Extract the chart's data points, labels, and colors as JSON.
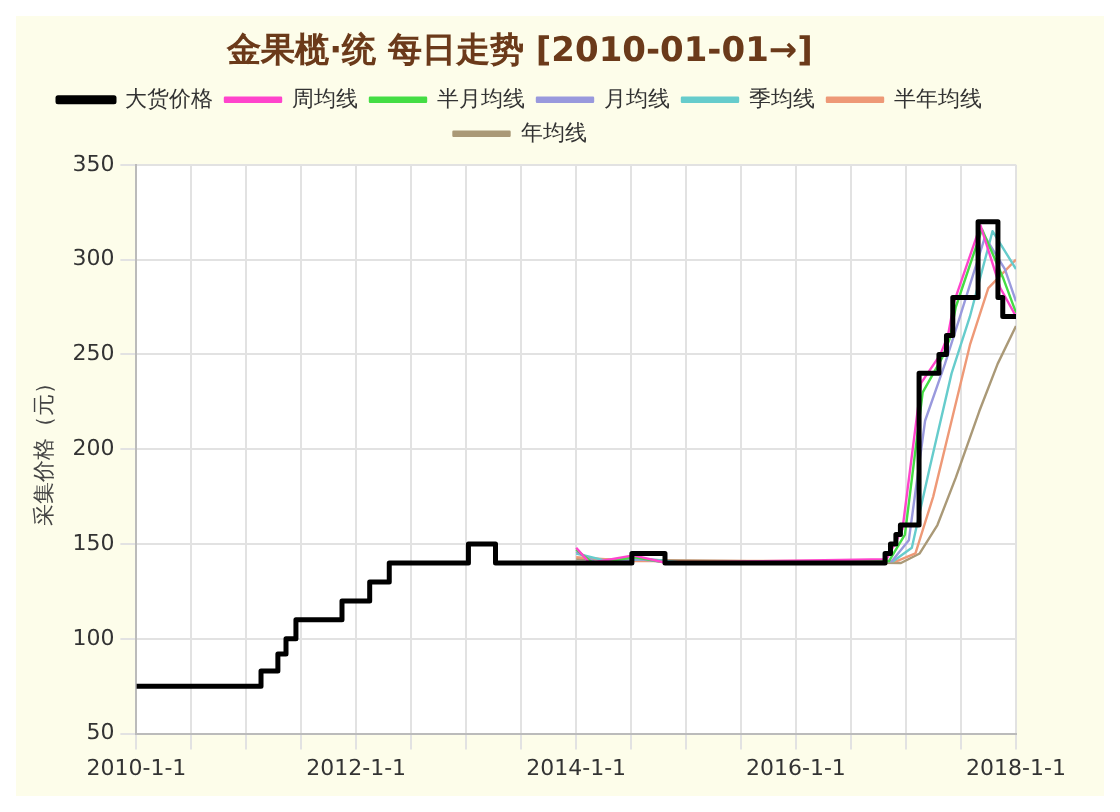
{
  "chart_data": {
    "type": "line",
    "title": "金果榄·统 每日走势 [2010-01-01→]",
    "ylabel": "采集价格（元）",
    "xlim": [
      "2010-01-01",
      "2018-01-01"
    ],
    "xticks": [
      {
        "value": "2010-01-01",
        "label": "2010-1-1"
      },
      {
        "value": "2010-07-01",
        "label": null
      },
      {
        "value": "2011-01-01",
        "label": null
      },
      {
        "value": "2011-07-01",
        "label": null
      },
      {
        "value": "2012-01-01",
        "label": "2012-1-1"
      },
      {
        "value": "2012-07-01",
        "label": null
      },
      {
        "value": "2013-01-01",
        "label": null
      },
      {
        "value": "2013-07-01",
        "label": null
      },
      {
        "value": "2014-01-01",
        "label": "2014-1-1"
      },
      {
        "value": "2014-07-01",
        "label": null
      },
      {
        "value": "2015-01-01",
        "label": null
      },
      {
        "value": "2015-07-01",
        "label": null
      },
      {
        "value": "2016-01-01",
        "label": "2016-1-1"
      },
      {
        "value": "2016-07-01",
        "label": null
      },
      {
        "value": "2017-01-01",
        "label": null
      },
      {
        "value": "2017-07-01",
        "label": null
      },
      {
        "value": "2018-01-01",
        "label": "2018-1-1"
      }
    ],
    "ylim": [
      50,
      350
    ],
    "yticks": [
      50,
      100,
      150,
      200,
      250,
      300,
      350
    ],
    "grid": true,
    "legend": "top",
    "marker": "none",
    "series": [
      {
        "name": "大货价格",
        "type": "step",
        "color": "#000000",
        "x": [
          "2010-01-01",
          "2011-02-19",
          "2011-04-16",
          "2011-05-13",
          "2011-06-15",
          "2011-11-15",
          "2012-02-15",
          "2012-04-20",
          "2013-01-08",
          "2013-04-08",
          "2014-07-05",
          "2014-10-23",
          "2016-10-23",
          "2016-11-10",
          "2016-11-28",
          "2016-12-13",
          "2017-02-13",
          "2017-04-20",
          "2017-05-15",
          "2017-06-05",
          "2017-08-28",
          "2017-11-02",
          "2017-11-18",
          "2018-01-01"
        ],
        "values": [
          75,
          83,
          92,
          100,
          110,
          120,
          130,
          140,
          150,
          140,
          145,
          140,
          145,
          150,
          155,
          160,
          240,
          250,
          260,
          280,
          320,
          280,
          270,
          270
        ]
      },
      {
        "name": "周均线",
        "color": "#ff44cc",
        "x": [
          "2014-01-01",
          "2014-02-15",
          "2014-07-10",
          "2014-10-28",
          "2016-10-28",
          "2016-12-20",
          "2017-02-20",
          "2017-04-25",
          "2017-05-20",
          "2017-06-10",
          "2017-09-05",
          "2017-11-10",
          "2018-01-01"
        ],
        "values": [
          148,
          140,
          144,
          140,
          142,
          158,
          235,
          250,
          260,
          278,
          318,
          285,
          270
        ]
      },
      {
        "name": "半月均线",
        "color": "#44dd44",
        "x": [
          "2014-01-01",
          "2014-02-25",
          "2014-07-15",
          "2014-11-05",
          "2016-11-05",
          "2016-12-28",
          "2017-02-25",
          "2017-04-30",
          "2017-05-25",
          "2017-06-15",
          "2017-09-10",
          "2017-11-20",
          "2018-01-01"
        ],
        "values": [
          147,
          140,
          143,
          140,
          141,
          155,
          230,
          248,
          258,
          275,
          316,
          290,
          272
        ]
      },
      {
        "name": "月均线",
        "color": "#9999dd",
        "x": [
          "2014-01-01",
          "2014-03-10",
          "2014-07-25",
          "2014-11-20",
          "2016-11-15",
          "2017-01-10",
          "2017-03-05",
          "2017-05-10",
          "2017-06-25",
          "2017-09-20",
          "2017-11-25",
          "2018-01-01"
        ],
        "values": [
          146,
          140,
          142,
          140,
          141,
          152,
          215,
          245,
          268,
          312,
          295,
          278
        ]
      },
      {
        "name": "季均线",
        "color": "#66cccc",
        "x": [
          "2014-01-01",
          "2014-04-15",
          "2014-09-01",
          "2014-12-31",
          "2016-11-20",
          "2017-01-20",
          "2017-03-20",
          "2017-06-01",
          "2017-08-01",
          "2017-10-15",
          "2018-01-01"
        ],
        "values": [
          145,
          141,
          142,
          140,
          141,
          148,
          190,
          240,
          270,
          315,
          295
        ]
      },
      {
        "name": "半年均线",
        "color": "#ee9977",
        "x": [
          "2014-01-01",
          "2014-07-01",
          "2015-02-01",
          "2016-12-01",
          "2017-02-01",
          "2017-04-01",
          "2017-06-01",
          "2017-08-01",
          "2017-10-01",
          "2018-01-01"
        ],
        "values": [
          143,
          141,
          141,
          141,
          145,
          175,
          215,
          255,
          285,
          300
        ]
      },
      {
        "name": "年均线",
        "color": "#aa9977",
        "x": [
          "2014-01-01",
          "2015-06-01",
          "2016-12-15",
          "2017-02-15",
          "2017-04-15",
          "2017-06-15",
          "2017-09-01",
          "2017-11-01",
          "2018-01-01"
        ],
        "values": [
          142,
          141,
          140,
          145,
          160,
          185,
          220,
          245,
          265
        ]
      }
    ]
  }
}
